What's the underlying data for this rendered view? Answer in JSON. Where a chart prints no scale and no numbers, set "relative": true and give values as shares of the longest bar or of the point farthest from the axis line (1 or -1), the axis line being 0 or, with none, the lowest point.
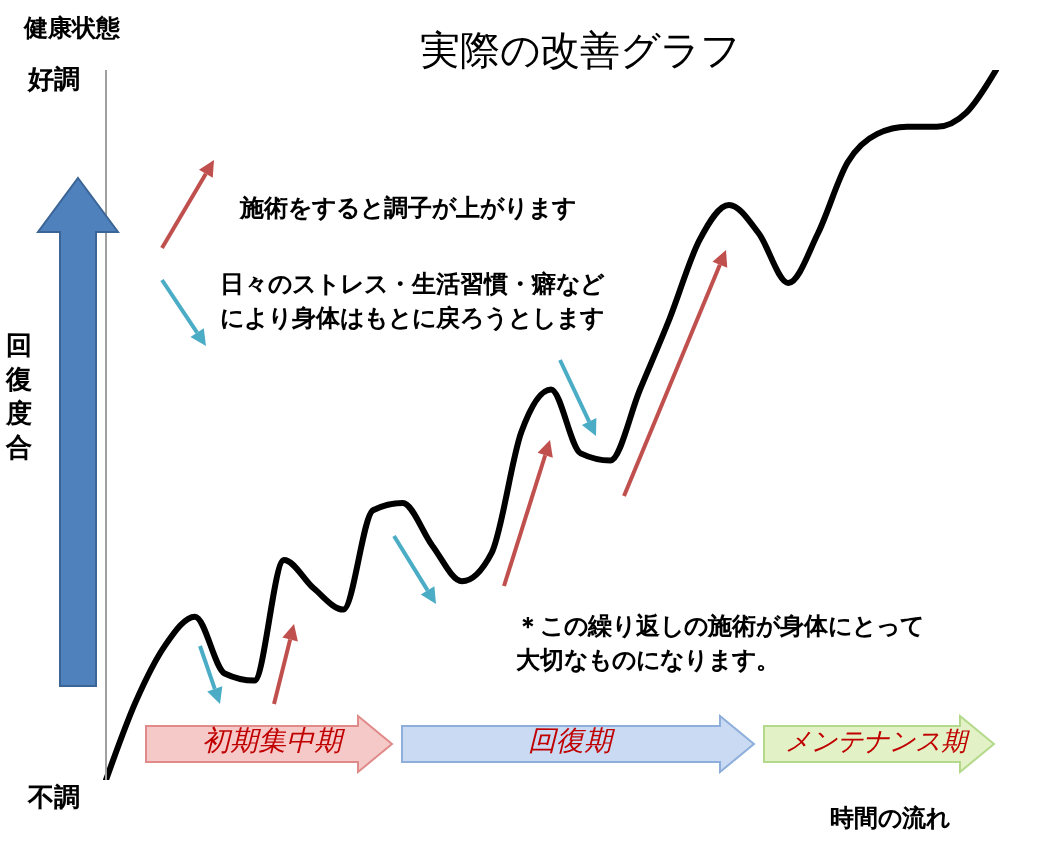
{
  "chart_data": {
    "type": "line",
    "title": "実際の改善グラフ",
    "xlabel": "時間の流れ",
    "ylabel": "健康状態",
    "relative": true,
    "categories": [
      null,
      null,
      null,
      null,
      null,
      null,
      null,
      null,
      null,
      null,
      null,
      null,
      null,
      null,
      null,
      null,
      null,
      null,
      null,
      null,
      null,
      null,
      null,
      null,
      null,
      null,
      null,
      null,
      null,
      null,
      null
    ],
    "series": [
      {
        "color": "#000000",
        "values": [
          0,
          0.11,
          0.19,
          0.23,
          0.15,
          0.14,
          0.31,
          0.27,
          0.24,
          0.38,
          0.39,
          0.33,
          0.28,
          0.32,
          0.49,
          0.55,
          0.46,
          0.45,
          0.55,
          0.65,
          0.76,
          0.81,
          0.77,
          0.7,
          0.77,
          0.87,
          0.91,
          0.92,
          0.92,
          0.94,
          1
        ]
      }
    ],
    "annotations": [
      "好調",
      "不調",
      "回復度合",
      "施術をすると調子が上がります",
      "日々のストレス・生活習慣・癖などにより身体はもとに戻ろうとします",
      "＊この繰り返しの施術が身体にとって大切なものになります。",
      "初期集中期",
      "回復期",
      "メンテナンス期"
    ],
    "grid": false,
    "legend": false,
    "marker": "none",
    "line_style": "solid"
  }
}
